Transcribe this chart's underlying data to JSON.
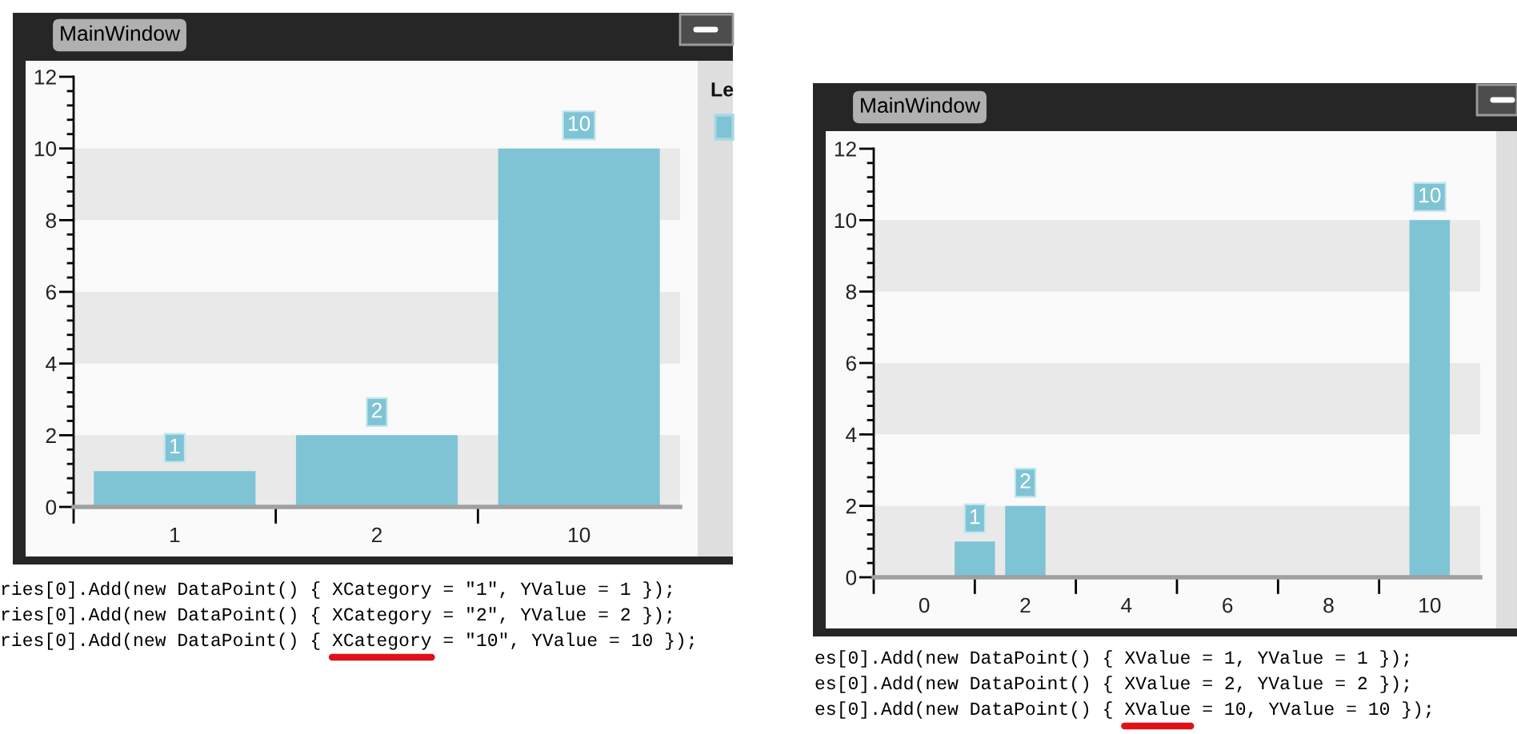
{
  "chart_data": [
    {
      "type": "bar",
      "title": "MainWindow",
      "categories": [
        "1",
        "2",
        "10"
      ],
      "values": [
        1,
        2,
        10
      ],
      "color": "#7fc4d5",
      "ylim": [
        0,
        12
      ],
      "yticks": [
        0,
        2,
        4,
        6,
        8,
        10,
        12
      ],
      "bands": [
        {
          "axis": "y",
          "from": 0,
          "to": 2,
          "color": "#e9e9e9"
        },
        {
          "axis": "y",
          "from": 4,
          "to": 6,
          "color": "#e9e9e9"
        },
        {
          "axis": "y",
          "from": 8,
          "to": 10,
          "color": "#e9e9e9"
        }
      ],
      "data_labels": true,
      "legend_title": "Le",
      "annotations": [
        "ries[0].Add(new DataPoint() { XCategory = \"1\", YValue = 1 });",
        "ries[0].Add(new DataPoint() { XCategory = \"2\", YValue = 2 });",
        "ries[0].Add(new DataPoint() { XCategory = \"10\", YValue = 10 });"
      ]
    },
    {
      "type": "bar",
      "title": "MainWindow",
      "x": [
        1,
        2,
        10
      ],
      "values": [
        1,
        2,
        10
      ],
      "color": "#7fc4d5",
      "xlim": [
        -1,
        11
      ],
      "xticks": [
        {
          "value": -1,
          "label": null
        },
        0,
        {
          "value": 1,
          "label": null
        },
        2,
        {
          "value": 3,
          "label": null
        },
        4,
        {
          "value": 5,
          "label": null
        },
        6,
        {
          "value": 7,
          "label": null
        },
        8,
        {
          "value": 9,
          "label": null
        },
        10
      ],
      "ylim": [
        0,
        12
      ],
      "yticks": [
        0,
        2,
        4,
        6,
        8,
        10,
        12
      ],
      "bands": [
        {
          "axis": "y",
          "from": 0,
          "to": 2,
          "color": "#e9e9e9"
        },
        {
          "axis": "y",
          "from": 4,
          "to": 6,
          "color": "#e9e9e9"
        },
        {
          "axis": "y",
          "from": 8,
          "to": 10,
          "color": "#e9e9e9"
        }
      ],
      "data_labels": true,
      "annotations": [
        "es[0].Add(new DataPoint() { XValue = 1, YValue = 1 });",
        "es[0].Add(new DataPoint() { XValue = 2, YValue = 2 });",
        "es[0].Add(new DataPoint() { XValue = 10, YValue = 10 });"
      ]
    }
  ]
}
